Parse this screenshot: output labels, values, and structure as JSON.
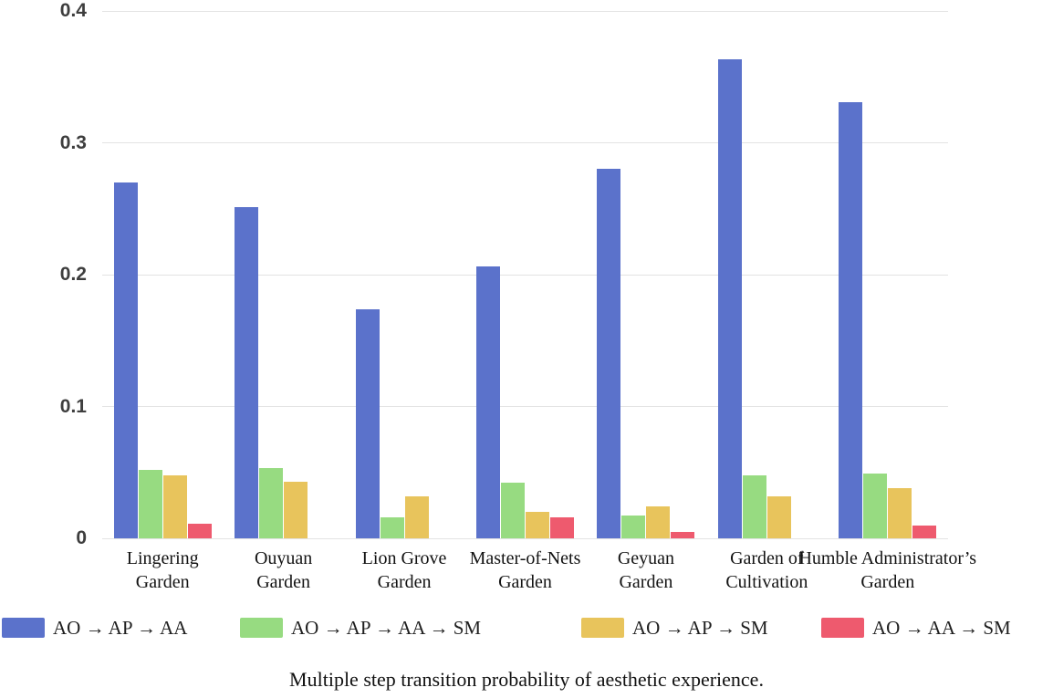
{
  "chart_data": {
    "type": "bar",
    "title": "Multiple step transition probability of aesthetic experience.",
    "categories": [
      "Lingering Garden",
      "Ouyuan Garden",
      "Lion Grove Garden",
      "Master-of-Nets Garden",
      "Geyuan Garden",
      "Garden of Cultivation",
      "Humble Administrator’s Garden"
    ],
    "category_lines": [
      [
        "Lingering",
        "Garden"
      ],
      [
        "Ouyuan",
        "Garden"
      ],
      [
        "Lion Grove",
        "Garden"
      ],
      [
        "Master-of-Nets",
        "Garden"
      ],
      [
        "Geyuan",
        "Garden"
      ],
      [
        "Garden of",
        "Cultivation"
      ],
      [
        "Humble Administrator’s",
        "Garden"
      ]
    ],
    "series": [
      {
        "name": "AO → AP → AA",
        "color": "#5b72cb",
        "values": [
          0.27,
          0.251,
          0.174,
          0.206,
          0.28,
          0.363,
          0.331
        ]
      },
      {
        "name": "AO → AP → AA → SM",
        "color": "#97db81",
        "values": [
          0.052,
          0.053,
          0.016,
          0.042,
          0.017,
          0.048,
          0.049
        ]
      },
      {
        "name": "AO → AP → SM",
        "color": "#e8c45c",
        "values": [
          0.048,
          0.043,
          0.032,
          0.02,
          0.024,
          0.032,
          0.038
        ]
      },
      {
        "name": "AO → AA → SM",
        "color": "#ee5a6e",
        "values": [
          0.011,
          0,
          0,
          0.016,
          0.005,
          0,
          0.01
        ]
      }
    ],
    "ylim": [
      0,
      0.4
    ],
    "y_ticks": [
      0,
      0.1,
      0.2,
      0.3,
      0.4
    ],
    "y_tick_labels": [
      "0",
      "0.1",
      "0.2",
      "0.3",
      "0.4"
    ],
    "grid": true,
    "legend_position": "bottom",
    "gridline_color": "#e3e3e3",
    "y_label_color": "#3e3e3e",
    "x_label_color": "#131313"
  }
}
